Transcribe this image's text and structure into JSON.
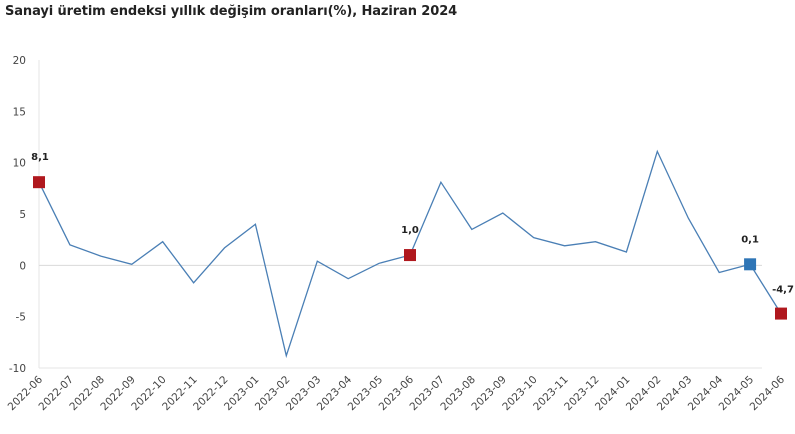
{
  "title": "Sanayi üretim endeksi yıllık değişim oranları(%), Haziran 2024",
  "colors": {
    "line": "#4a7fb5",
    "highlight_red": "#b0181e",
    "highlight_blue": "#2e75b6",
    "zero_line": "#d9d9d9",
    "axis": "#e6e6e6"
  },
  "chart_data": {
    "type": "line",
    "title": "Sanayi üretim endeksi yıllık değişim oranları(%), Haziran 2024",
    "xlabel": "",
    "ylabel": "",
    "ylim": [
      -10,
      20
    ],
    "yticks": [
      20,
      15,
      10,
      5,
      0,
      -5,
      -10
    ],
    "grid": false,
    "legend": null,
    "categories": [
      "2022-06",
      "2022-07",
      "2022-08",
      "2022-09",
      "2022-10",
      "2022-11",
      "2022-12",
      "2023-01",
      "2023-02",
      "2023-03",
      "2023-04",
      "2023-05",
      "2023-06",
      "2023-07",
      "2023-08",
      "2023-09",
      "2023-10",
      "2023-11",
      "2023-12",
      "2024-01",
      "2024-02",
      "2024-03",
      "2024-04",
      "2024-05",
      "2024-06"
    ],
    "series": [
      {
        "name": "Yıllık değişim (%)",
        "values": [
          8.1,
          2.0,
          0.9,
          0.1,
          2.3,
          -1.7,
          1.7,
          4.0,
          -8.8,
          0.4,
          -1.3,
          0.2,
          1.0,
          8.1,
          3.5,
          5.1,
          2.7,
          1.9,
          2.3,
          1.3,
          11.1,
          4.6,
          -0.7,
          0.1,
          -4.7
        ]
      }
    ],
    "annotations": [
      {
        "category": "2022-06",
        "label": "8,1",
        "marker": "red-square"
      },
      {
        "category": "2023-06",
        "label": "1,0",
        "marker": "red-square"
      },
      {
        "category": "2024-05",
        "label": "0,1",
        "marker": "blue-square"
      },
      {
        "category": "2024-06",
        "label": "-4,7",
        "marker": "red-square"
      }
    ]
  }
}
